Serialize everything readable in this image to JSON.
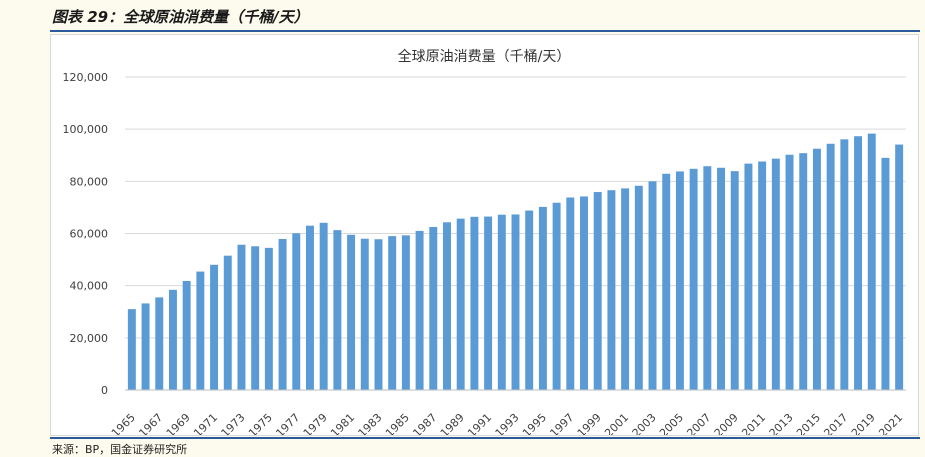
{
  "figure": {
    "caption": "图表 29：全球原油消费量（千桶/天）",
    "source": "来源：BP，国金证券研究所"
  },
  "colors": {
    "bar": "#5b9bd5",
    "rule": "#2a5a9c",
    "background": "#fdfbed",
    "gridline": "#d9d9d9"
  },
  "chart_data": {
    "type": "bar",
    "title": "全球原油消费量（千桶/天）",
    "xlabel": "",
    "ylabel": "",
    "ylim": [
      0,
      120000
    ],
    "ytick_labels": [
      "0",
      "20,000",
      "40,000",
      "60,000",
      "80,000",
      "100,000",
      "120,000"
    ],
    "grid": true,
    "legend": "none",
    "categories": [
      "1965",
      "1966",
      "1967",
      "1968",
      "1969",
      "1970",
      "1971",
      "1972",
      "1973",
      "1974",
      "1975",
      "1976",
      "1977",
      "1978",
      "1979",
      "1980",
      "1981",
      "1982",
      "1983",
      "1984",
      "1985",
      "1986",
      "1987",
      "1988",
      "1989",
      "1990",
      "1991",
      "1992",
      "1993",
      "1994",
      "1995",
      "1996",
      "1997",
      "1998",
      "1999",
      "2000",
      "2001",
      "2002",
      "2003",
      "2004",
      "2005",
      "2006",
      "2007",
      "2008",
      "2009",
      "2010",
      "2011",
      "2012",
      "2013",
      "2014",
      "2015",
      "2016",
      "2017",
      "2018",
      "2019",
      "2020",
      "2021"
    ],
    "values": [
      31000,
      33200,
      35500,
      38400,
      41800,
      45400,
      48000,
      51500,
      55700,
      55100,
      54500,
      57900,
      60100,
      63000,
      64100,
      61300,
      59500,
      58000,
      57800,
      59000,
      59300,
      61000,
      62500,
      64300,
      65700,
      66400,
      66500,
      67200,
      67300,
      68800,
      70200,
      71800,
      73800,
      74200,
      75900,
      76600,
      77300,
      78300,
      80000,
      82900,
      83800,
      84800,
      85800,
      85200,
      83900,
      86800,
      87600,
      88700,
      90200,
      90800,
      92500,
      94400,
      96100,
      97300,
      98300,
      89000,
      94100
    ]
  }
}
